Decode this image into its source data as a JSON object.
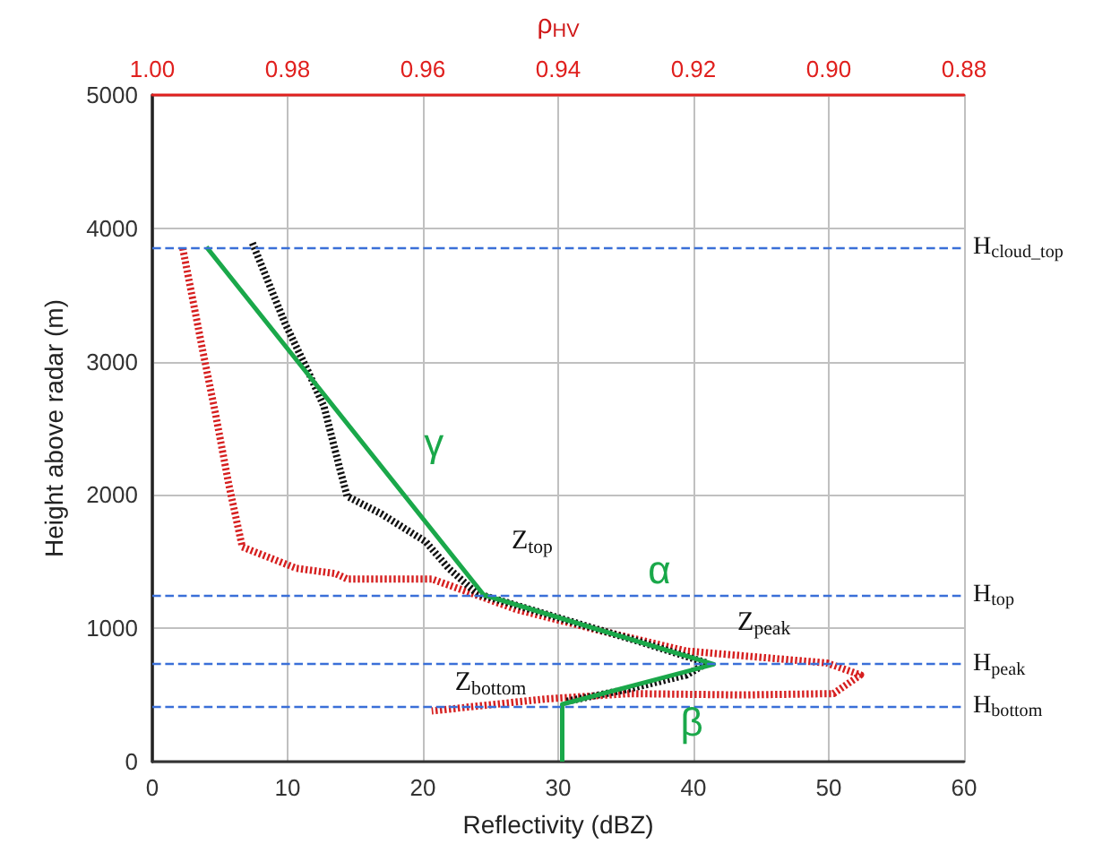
{
  "chart_data": {
    "type": "line",
    "xlabel": "Reflectivity (dBZ)",
    "ylabel": "Height above radar (m)",
    "x2label": "ρ$_{HV}$",
    "xlim": [
      0,
      60
    ],
    "xticks": [
      0,
      10,
      20,
      30,
      40,
      50,
      60
    ],
    "x2lim": [
      1.0,
      0.88
    ],
    "x2ticks": [
      {
        "value": 1.0,
        "label": "1.00"
      },
      0.98,
      0.96,
      0.94,
      0.92,
      {
        "value": 0.9,
        "label": "0.90"
      },
      0.88
    ],
    "ylim": [
      0,
      5000
    ],
    "yticks": [
      0,
      1000,
      2000,
      3000,
      4000,
      5000
    ],
    "grid": true,
    "marker": "none",
    "series": [
      {
        "axis": "x2",
        "color": "#d61f1f",
        "line_style": "dotted",
        "x": [
          0.9955,
          0.9925,
          0.9907,
          0.9887,
          0.9867,
          0.9787,
          0.9729,
          0.9712,
          0.9587,
          0.9461,
          0.9336,
          0.9211,
          0.9003,
          0.8953,
          0.8993,
          0.9128,
          0.9294,
          0.9419,
          0.9587
        ],
        "values": [
          3850,
          3070,
          2620,
          2080,
          1610,
          1450,
          1410,
          1370,
          1370,
          1140,
          980,
          830,
          740,
          650,
          510,
          500,
          510,
          470,
          380
        ]
      },
      {
        "color": "#111111",
        "line_style": "dotted",
        "x": [
          7.4,
          9.8,
          11.5,
          12.7,
          13.8,
          14.4,
          16.9,
          20.2,
          21.9,
          24,
          30,
          36,
          41,
          39.5,
          35,
          30.5
        ],
        "values": [
          3890,
          3290,
          2930,
          2660,
          2220,
          1990,
          1860,
          1650,
          1450,
          1260,
          1080,
          900,
          740,
          650,
          540,
          450
        ]
      },
      {
        "color": "#1aa84a",
        "line_style": "solid",
        "x": [
          4,
          24.5,
          41.5,
          30.3,
          30.3
        ],
        "values": [
          3860,
          1250,
          730,
          430,
          0
        ]
      }
    ],
    "ref_lines": [
      {
        "axis": "y",
        "value": 3860,
        "label": "H$_{cloud_top}$",
        "color": "#3a6fd8",
        "line_style": "dashed"
      },
      {
        "axis": "y",
        "value": 1250,
        "label": "H$_{top}$",
        "color": "#3a6fd8",
        "line_style": "dashed"
      },
      {
        "axis": "y",
        "value": 730,
        "label": "H$_{peak}$",
        "color": "#3a6fd8",
        "line_style": "dashed"
      },
      {
        "axis": "y",
        "value": 420,
        "label": "H$_{bottom}$",
        "color": "#3a6fd8",
        "line_style": "dashed"
      }
    ],
    "annotations": [
      {
        "text": "Z$_{top}$",
        "x": 24.5,
        "y": 1250
      },
      {
        "text": "Z$_{peak}$",
        "x": 41.5,
        "y": 730
      },
      {
        "text": "Z$_{bottom}$",
        "x": 30.3,
        "y": 430
      },
      {
        "text": "γ",
        "x": 17.5,
        "y": 2245
      },
      {
        "text": "α",
        "x": 33.5,
        "y": 1008
      },
      {
        "text": "β",
        "x": 35.9,
        "y": 511
      }
    ]
  }
}
